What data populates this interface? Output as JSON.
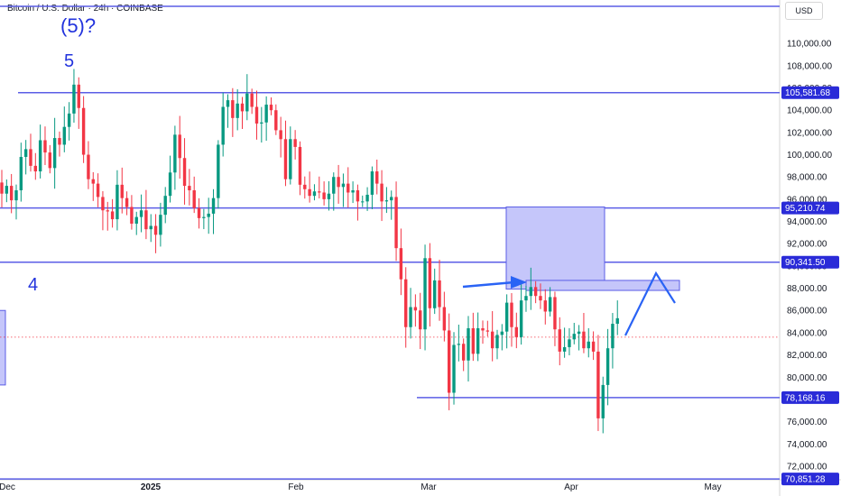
{
  "header": {
    "symbol_title": "Bitcoin / U.S. Dollar · 24h · COINBASE",
    "currency": "USD"
  },
  "y_axis_ticks": [
    "110,000.00",
    "108,000.00",
    "106,000.00",
    "104,000.00",
    "102,000.00",
    "100,000.00",
    "98,000.00",
    "96,000.00",
    "94,000.00",
    "92,000.00",
    "90,000.00",
    "88,000.00",
    "86,000.00",
    "84,000.00",
    "82,000.00",
    "80,000.00",
    "78,000.00",
    "76,000.00",
    "74,000.00",
    "72,000.00"
  ],
  "x_axis_labels": [
    "Dec",
    "2025",
    "Feb",
    "Mar",
    "Apr",
    "May"
  ],
  "price_levels": [
    {
      "value": 105581.68,
      "label": "105,581.68"
    },
    {
      "value": 95210.74,
      "label": "95,210.74"
    },
    {
      "value": 90341.5,
      "label": "90,341.50"
    },
    {
      "value": 78168.16,
      "label": "78,168.16"
    },
    {
      "value": 70851.28,
      "label": "70,851.28"
    }
  ],
  "annotations": {
    "wave_5_question": "(5)?",
    "wave_5": "5",
    "wave_4": "4"
  },
  "colors": {
    "up": "#089981",
    "down": "#f23645",
    "annotation": "#2233dd",
    "level_line": "#5b5ee6",
    "box_fill": "#c5c6fa",
    "label_bg": "#2a2bd8"
  },
  "chart_data": {
    "type": "candlestick",
    "title": "Bitcoin / U.S. Dollar · 24h · COINBASE",
    "ylim": [
      70000,
      113000
    ],
    "y_ticks": [
      72000,
      74000,
      76000,
      78000,
      80000,
      82000,
      84000,
      86000,
      88000,
      90000,
      92000,
      94000,
      96000,
      98000,
      100000,
      102000,
      104000,
      106000,
      108000,
      110000
    ],
    "x_labels": [
      "Dec",
      "2025",
      "Feb",
      "Mar",
      "Apr",
      "May"
    ],
    "candles_daily_close_approx": [
      96500,
      97200,
      95900,
      96800,
      99800,
      100500,
      99000,
      98500,
      101300,
      100200,
      98800,
      101500,
      100900,
      102500,
      103700,
      106300,
      104200,
      100000,
      97800,
      97400,
      96200,
      95000,
      94900,
      94200,
      97300,
      96100,
      95300,
      93800,
      94400,
      95000,
      93300,
      93600,
      92800,
      94600,
      96300,
      98400,
      101800,
      99700,
      97200,
      96800,
      95200,
      94300,
      94400,
      94700,
      96100,
      100900,
      104300,
      104900,
      103300,
      104600,
      103900,
      105500,
      104300,
      102800,
      102900,
      104500,
      104000,
      102200,
      101400,
      97800,
      101400,
      100700,
      97300,
      96900,
      96300,
      96700,
      96600,
      96000,
      96500,
      98000,
      97100,
      97400,
      96600,
      96800,
      95800,
      95800,
      96400,
      98500,
      97400,
      95800,
      95900,
      96200,
      91600,
      88800,
      84500,
      86300,
      86000,
      84300,
      90700,
      86200,
      88700,
      86300,
      84200,
      78600,
      82900,
      83000,
      81500,
      84400,
      82100,
      84400,
      84200,
      84100,
      82600,
      83800,
      84100,
      86700,
      84500,
      83600,
      86900,
      87300,
      88100,
      87300,
      86900,
      85900,
      87200,
      84300,
      82300,
      82700,
      83400,
      83900,
      84100,
      82600,
      83200,
      82300,
      76300,
      79300,
      82600,
      84800,
      85300
    ],
    "forecast_path": [
      {
        "date": "2025-04-13",
        "price": 83500
      },
      {
        "date": "2025-04-25",
        "price": 89200
      },
      {
        "date": "2025-04-30",
        "price": 86500
      }
    ],
    "zones": [
      {
        "from": "2025-03-10",
        "to": "2025-04-03",
        "low": 93500,
        "high": 95300
      },
      {
        "from": "2025-03-20",
        "to": "2025-05-01",
        "low": 88000,
        "high": 88700
      }
    ],
    "last_price_dotted": 83600
  }
}
